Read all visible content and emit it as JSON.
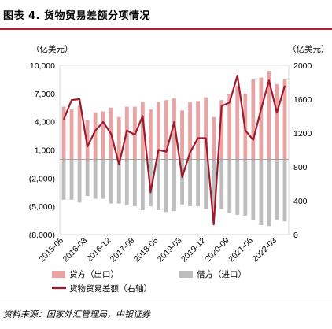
{
  "title": "图表 4. 货物贸易差额分项情况",
  "source": "资料来源：国家外汇管理局，中银证券",
  "chart_data": {
    "type": "bar",
    "left_axis": {
      "unit": "（亿美元）",
      "ticks": [
        "10,000",
        "7,000",
        "4,000",
        "1,000",
        "(2,000)",
        "(5,000)",
        "(8,000)"
      ],
      "range": [
        -8000,
        10000
      ]
    },
    "right_axis": {
      "unit": "（亿美元）",
      "ticks": [
        "2000",
        "1600",
        "1200",
        "800",
        "400",
        "0"
      ],
      "range": [
        0,
        2000
      ]
    },
    "x_tick_labels": [
      "2015-06",
      "2016-03",
      "2016-12",
      "2017-09",
      "2018-06",
      "2019-03",
      "2019-12",
      "2020-09",
      "2021-06",
      "2022-03"
    ],
    "categories": [
      "2015-06",
      "2015-09",
      "2015-12",
      "2016-03",
      "2016-06",
      "2016-09",
      "2016-12",
      "2017-03",
      "2017-06",
      "2017-09",
      "2017-12",
      "2018-03",
      "2018-06",
      "2018-09",
      "2018-12",
      "2019-03",
      "2019-06",
      "2019-09",
      "2019-12",
      "2020-03",
      "2020-06",
      "2020-09",
      "2020-12",
      "2021-03",
      "2021-06",
      "2021-09",
      "2021-12",
      "2022-03",
      "2022-06"
    ],
    "series": [
      {
        "name": "贷方（出口）",
        "type": "bar",
        "axis": "left",
        "color": "#e8a3a3",
        "values": [
          5600,
          5300,
          5700,
          4200,
          5000,
          5100,
          5500,
          4500,
          5600,
          5600,
          6100,
          5300,
          6100,
          6300,
          6500,
          5200,
          6100,
          6200,
          6600,
          4500,
          6300,
          6900,
          7800,
          7000,
          8500,
          8700,
          9400,
          8000,
          8500
        ]
      },
      {
        "name": "借方（进口）",
        "type": "bar",
        "axis": "left",
        "color": "#bdbdbd",
        "values": [
          -4300,
          -4300,
          -4600,
          -3900,
          -4200,
          -4200,
          -4700,
          -4700,
          -4900,
          -5000,
          -5400,
          -5000,
          -5400,
          -5600,
          -5500,
          -4800,
          -5000,
          -5000,
          -5300,
          -5300,
          -5300,
          -5700,
          -5900,
          -6000,
          -6500,
          -7000,
          -7100,
          -6400,
          -6600
        ]
      },
      {
        "name": "货物贸易差额（右轴）",
        "type": "line",
        "axis": "right",
        "color": "#a0182c",
        "values": [
          1360,
          1590,
          1600,
          1040,
          1230,
          1330,
          1190,
          830,
          1230,
          1180,
          1400,
          500,
          1000,
          980,
          1330,
          680,
          970,
          1140,
          1140,
          120,
          1520,
          1560,
          1880,
          1230,
          1120,
          1480,
          1820,
          1440,
          1760
        ]
      }
    ]
  }
}
